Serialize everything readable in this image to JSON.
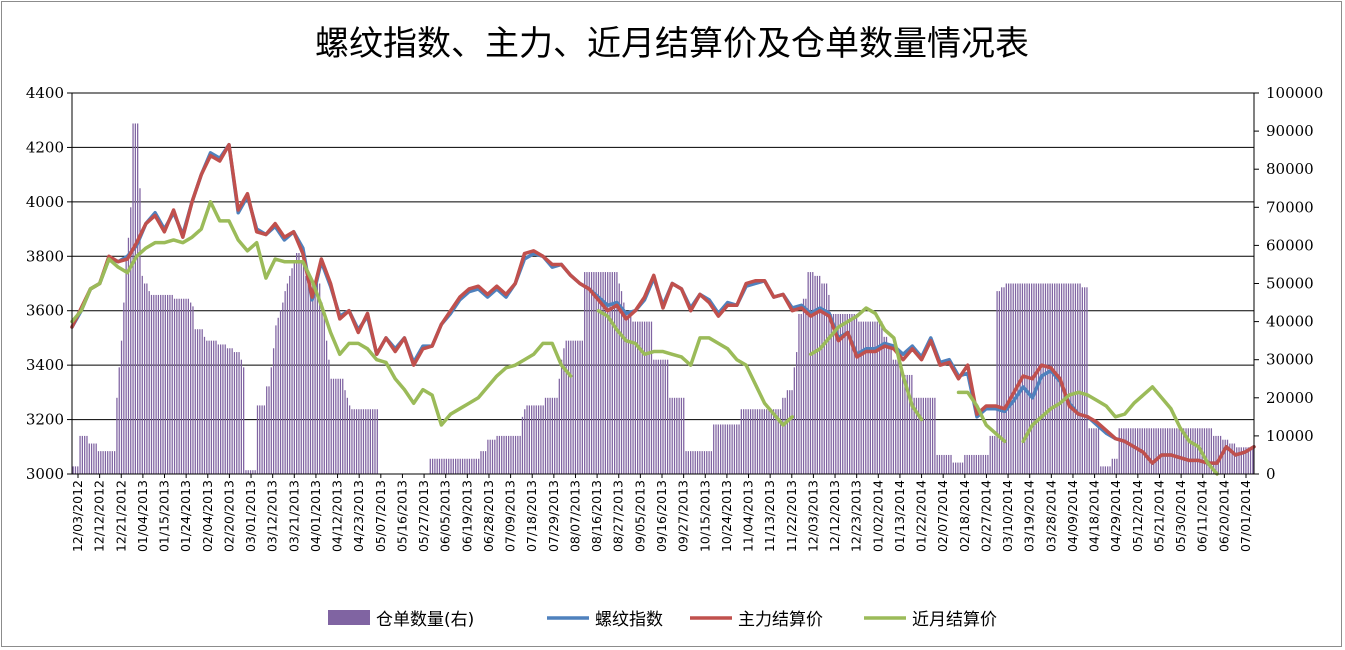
{
  "chart_data": {
    "type": "bar+line",
    "title": "螺纹指数、主力、近月结算价及仓单数量情况表",
    "left_axis": {
      "min": 3000,
      "max": 4400,
      "step": 200,
      "ticks": [
        "4400",
        "4200",
        "4000",
        "3800",
        "3600",
        "3400",
        "3200",
        "3000"
      ]
    },
    "right_axis": {
      "min": 0,
      "max": 100000,
      "step": 10000,
      "ticks": [
        "100000",
        "90000",
        "80000",
        "70000",
        "60000",
        "50000",
        "40000",
        "30000",
        "20000",
        "10000",
        "0"
      ]
    },
    "grid": true,
    "legend_position": "bottom",
    "x_tick_labels": [
      "12/03/2012",
      "12/12/2012",
      "12/21/2012",
      "01/04/2013",
      "01/15/2013",
      "01/24/2013",
      "02/04/2013",
      "02/20/2013",
      "03/01/2013",
      "03/12/2013",
      "03/21/2013",
      "04/01/2013",
      "04/12/2013",
      "04/23/2013",
      "05/07/2013",
      "05/16/2013",
      "05/27/2013",
      "06/05/2013",
      "06/19/2013",
      "06/28/2013",
      "07/09/2013",
      "07/18/2013",
      "07/29/2013",
      "08/07/2013",
      "08/16/2013",
      "08/27/2013",
      "09/05/2013",
      "09/16/2013",
      "09/27/2013",
      "10/15/2013",
      "10/24/2013",
      "11/04/2013",
      "11/13/2013",
      "11/22/2013",
      "12/03/2013",
      "12/12/2013",
      "12/23/2013",
      "01/02/2014",
      "01/13/2014",
      "01/22/2014",
      "02/07/2014",
      "02/18/2014",
      "02/27/2014",
      "03/10/2014",
      "03/19/2014",
      "03/28/2014",
      "04/09/2014",
      "04/18/2014",
      "04/29/2014",
      "05/12/2014",
      "05/21/2014",
      "05/30/2014",
      "06/11/2014",
      "06/20/2014",
      "07/01/2014"
    ],
    "series": [
      {
        "name": "仓单数量(右)",
        "kind": "bar",
        "axis": "right",
        "color": "#8064a2",
        "values": [
          2000,
          2000,
          2000,
          10000,
          10000,
          10000,
          10000,
          8000,
          8000,
          8000,
          8000,
          6000,
          6000,
          6000,
          6000,
          6000,
          6000,
          6000,
          6000,
          20000,
          28000,
          35000,
          45000,
          57000,
          62000,
          70000,
          92000,
          92000,
          92000,
          75000,
          52000,
          50000,
          50000,
          48000,
          47000,
          47000,
          47000,
          47000,
          47000,
          47000,
          47000,
          47000,
          47000,
          47000,
          46000,
          46000,
          46000,
          46000,
          46000,
          46000,
          46000,
          45000,
          44000,
          38000,
          38000,
          38000,
          38000,
          36000,
          35000,
          35000,
          35000,
          35000,
          35000,
          34000,
          34000,
          34000,
          34000,
          33000,
          33000,
          33000,
          32000,
          32000,
          32000,
          30000,
          28000,
          1000,
          1000,
          1000,
          1000,
          1000,
          18000,
          18000,
          18000,
          18000,
          23000,
          23000,
          28000,
          33000,
          39000,
          41000,
          43000,
          45000,
          48000,
          50000,
          52000,
          54000,
          56000,
          58000,
          58000,
          56000,
          55000,
          52000,
          50000,
          50000,
          50000,
          50000,
          50000,
          50000,
          45000,
          42000,
          35000,
          30000,
          25000,
          25000,
          25000,
          25000,
          25000,
          25000,
          22000,
          20000,
          18000,
          17000,
          17000,
          17000,
          17000,
          17000,
          17000,
          17000,
          17000,
          17000,
          17000,
          17000,
          17000,
          0,
          0,
          0,
          0,
          0,
          0,
          0,
          0,
          0,
          0,
          0,
          0,
          0,
          0,
          0,
          0,
          0,
          0,
          0,
          0,
          0,
          0,
          4000,
          4000,
          4000,
          4000,
          4000,
          4000,
          4000,
          4000,
          4000,
          4000,
          4000,
          4000,
          4000,
          4000,
          4000,
          4000,
          4000,
          4000,
          4000,
          4000,
          4000,
          4000,
          6000,
          6000,
          6000,
          9000,
          9000,
          9000,
          9000,
          10000,
          10000,
          10000,
          10000,
          10000,
          10000,
          10000,
          10000,
          10000,
          10000,
          10000,
          15000,
          17000,
          18000,
          18000,
          18000,
          18000,
          18000,
          18000,
          18000,
          18000,
          20000,
          20000,
          20000,
          20000,
          20000,
          20000,
          25000,
          30000,
          33000,
          35000,
          35000,
          35000,
          35000,
          35000,
          35000,
          35000,
          35000,
          53000,
          53000,
          53000,
          53000,
          53000,
          53000,
          53000,
          53000,
          53000,
          53000,
          53000,
          53000,
          53000,
          53000,
          53000,
          50000,
          48000,
          45000,
          42000,
          42000,
          42000,
          40000,
          40000,
          40000,
          40000,
          40000,
          40000,
          40000,
          40000,
          40000,
          30000,
          30000,
          30000,
          30000,
          30000,
          30000,
          30000,
          20000,
          20000,
          20000,
          20000,
          20000,
          20000,
          20000,
          6000,
          6000,
          6000,
          6000,
          6000,
          6000,
          6000,
          6000,
          6000,
          6000,
          6000,
          6000,
          13000,
          13000,
          13000,
          13000,
          13000,
          13000,
          13000,
          13000,
          13000,
          13000,
          13000,
          13000,
          17000,
          17000,
          17000,
          17000,
          17000,
          17000,
          17000,
          17000,
          17000,
          17000,
          17000,
          17000,
          17000,
          17000,
          17000,
          17000,
          17000,
          17000,
          20000,
          20000,
          22000,
          22000,
          22000,
          28000,
          32000,
          42000,
          42000,
          46000,
          46000,
          53000,
          53000,
          53000,
          52000,
          52000,
          52000,
          50000,
          50000,
          50000,
          47000,
          42000,
          42000,
          42000,
          42000,
          42000,
          42000,
          42000,
          42000,
          42000,
          42000,
          42000,
          42000,
          40000,
          40000,
          40000,
          40000,
          40000,
          40000,
          40000,
          40000,
          40000,
          40000,
          40000,
          36000,
          36000,
          34000,
          34000,
          30000,
          30000,
          30000,
          28000,
          26000,
          26000,
          26000,
          26000,
          26000,
          20000,
          20000,
          20000,
          20000,
          20000,
          20000,
          20000,
          20000,
          20000,
          20000,
          5000,
          5000,
          5000,
          5000,
          5000,
          5000,
          5000,
          3000,
          3000,
          3000,
          3000,
          3000,
          5000,
          5000,
          5000,
          5000,
          5000,
          5000,
          5000,
          5000,
          5000,
          5000,
          5000,
          10000,
          10000,
          10000,
          48000,
          48000,
          49000,
          49000,
          50000,
          50000,
          50000,
          50000,
          50000,
          50000,
          50000,
          50000,
          50000,
          50000,
          50000,
          50000,
          50000,
          50000,
          50000,
          50000,
          50000,
          50000,
          50000,
          50000,
          50000,
          50000,
          50000,
          50000,
          50000,
          50000,
          50000,
          50000,
          50000,
          50000,
          50000,
          50000,
          50000,
          49000,
          49000,
          49000,
          12000,
          12000,
          12000,
          12000,
          12000,
          2000,
          2000,
          2000,
          2000,
          2000,
          4000,
          4000,
          4000,
          12000,
          12000,
          12000,
          12000,
          12000,
          12000,
          12000,
          12000,
          12000,
          12000,
          12000,
          12000,
          12000,
          12000,
          12000,
          12000,
          12000,
          12000,
          12000,
          12000,
          12000,
          12000,
          12000,
          12000,
          12000,
          12000,
          12000,
          12000,
          12000,
          12000,
          12000,
          12000,
          12000,
          12000,
          12000,
          12000,
          12000,
          12000,
          12000,
          12000,
          12000,
          10000,
          10000,
          10000,
          10000,
          9000,
          9000,
          9000,
          8000,
          8000,
          8000,
          7000,
          7000,
          7000,
          7000,
          7000,
          7000,
          7000,
          7000
        ]
      },
      {
        "name": "螺纹指数",
        "kind": "line",
        "axis": "left",
        "color": "#4f81bd",
        "width": 3.5,
        "values": [
          3540,
          3600,
          3680,
          3700,
          3790,
          3780,
          3800,
          3840,
          3920,
          3960,
          3900,
          3960,
          3880,
          4000,
          4100,
          4180,
          4160,
          4210,
          3960,
          4020,
          3900,
          3880,
          3910,
          3860,
          3890,
          3830,
          3640,
          3780,
          3690,
          3580,
          3600,
          3530,
          3580,
          3440,
          3500,
          3460,
          3500,
          3410,
          3470,
          3470,
          3550,
          3590,
          3640,
          3670,
          3680,
          3650,
          3680,
          3650,
          3700,
          3790,
          3810,
          3800,
          3760,
          3770,
          3730,
          3700,
          3680,
          3650,
          3620,
          3630,
          3590,
          3600,
          3640,
          3720,
          3620,
          3700,
          3680,
          3610,
          3660,
          3640,
          3590,
          3630,
          3620,
          3690,
          3700,
          3710,
          3650,
          3660,
          3610,
          3620,
          3590,
          3610,
          3590,
          3500,
          3520,
          3440,
          3460,
          3460,
          3480,
          3470,
          3440,
          3470,
          3430,
          3500,
          3410,
          3420,
          3360,
          3370,
          3210,
          3240,
          3240,
          3230,
          3270,
          3320,
          3280,
          3360,
          3380,
          3340,
          3260,
          3220,
          3210,
          3180,
          3150,
          3130,
          3120,
          3100,
          3080,
          3040,
          3070,
          3070,
          3060,
          3050,
          3050,
          3040,
          3040,
          3100,
          3070,
          3080,
          3100
        ]
      },
      {
        "name": "主力结算价",
        "kind": "line",
        "axis": "left",
        "color": "#c0504d",
        "width": 3.5,
        "values": [
          3540,
          3610,
          3680,
          3700,
          3800,
          3780,
          3790,
          3850,
          3920,
          3950,
          3890,
          3970,
          3870,
          4000,
          4100,
          4170,
          4150,
          4210,
          3970,
          4030,
          3890,
          3880,
          3920,
          3870,
          3890,
          3810,
          3650,
          3790,
          3700,
          3570,
          3600,
          3520,
          3590,
          3440,
          3500,
          3450,
          3500,
          3400,
          3460,
          3470,
          3550,
          3600,
          3650,
          3680,
          3690,
          3660,
          3690,
          3660,
          3700,
          3810,
          3820,
          3800,
          3770,
          3770,
          3730,
          3700,
          3680,
          3640,
          3600,
          3620,
          3570,
          3600,
          3650,
          3730,
          3610,
          3700,
          3680,
          3600,
          3660,
          3630,
          3580,
          3620,
          3620,
          3700,
          3710,
          3710,
          3650,
          3660,
          3600,
          3610,
          3580,
          3600,
          3580,
          3490,
          3520,
          3430,
          3450,
          3450,
          3470,
          3460,
          3420,
          3460,
          3420,
          3490,
          3400,
          3410,
          3350,
          3400,
          3220,
          3250,
          3250,
          3240,
          3300,
          3360,
          3350,
          3400,
          3390,
          3350,
          3250,
          3220,
          3210,
          3190,
          3160,
          3130,
          3120,
          3100,
          3080,
          3040,
          3070,
          3070,
          3060,
          3050,
          3050,
          3040,
          3040,
          3100,
          3070,
          3080,
          3100
        ]
      },
      {
        "name": "近月结算价",
        "kind": "line",
        "axis": "left",
        "color": "#9bbb59",
        "width": 3.5,
        "values": [
          3560,
          3600,
          3680,
          3700,
          3790,
          3760,
          3740,
          3800,
          3830,
          3850,
          3850,
          3860,
          3850,
          3870,
          3900,
          4000,
          3930,
          3930,
          3860,
          3820,
          3850,
          3720,
          3790,
          3780,
          3780,
          3780,
          3710,
          3620,
          3520,
          3440,
          3480,
          3480,
          3460,
          3420,
          3410,
          3350,
          3310,
          3260,
          3310,
          3290,
          3180,
          3220,
          3240,
          3260,
          3280,
          3320,
          3360,
          3390,
          3400,
          3420,
          3440,
          3480,
          3480,
          3400,
          3360,
          null,
          null,
          3600,
          3580,
          3530,
          3490,
          3480,
          3440,
          3450,
          3450,
          3440,
          3430,
          3400,
          3500,
          3500,
          3480,
          3460,
          3420,
          3400,
          3330,
          3260,
          3220,
          3180,
          3210,
          null,
          3440,
          3460,
          3500,
          3540,
          3560,
          3580,
          3610,
          3590,
          3530,
          3500,
          3360,
          3250,
          3200,
          null,
          3200,
          null,
          3300,
          3300,
          3250,
          3180,
          3150,
          3120,
          null,
          3120,
          3180,
          3210,
          3240,
          3260,
          3290,
          3300,
          3290,
          3270,
          3250,
          3210,
          3220,
          3260,
          3290,
          3320,
          3280,
          3240,
          3170,
          3120,
          3100,
          3040,
          3000,
          null,
          null,
          null,
          null
        ]
      }
    ]
  },
  "legend": {
    "items": [
      {
        "label": "仓单数量(右)",
        "color": "#8064a2",
        "type": "bar"
      },
      {
        "label": "螺纹指数",
        "color": "#4f81bd",
        "type": "line"
      },
      {
        "label": "主力结算价",
        "color": "#c0504d",
        "type": "line"
      },
      {
        "label": "近月结算价",
        "color": "#9bbb59",
        "type": "line"
      }
    ]
  }
}
